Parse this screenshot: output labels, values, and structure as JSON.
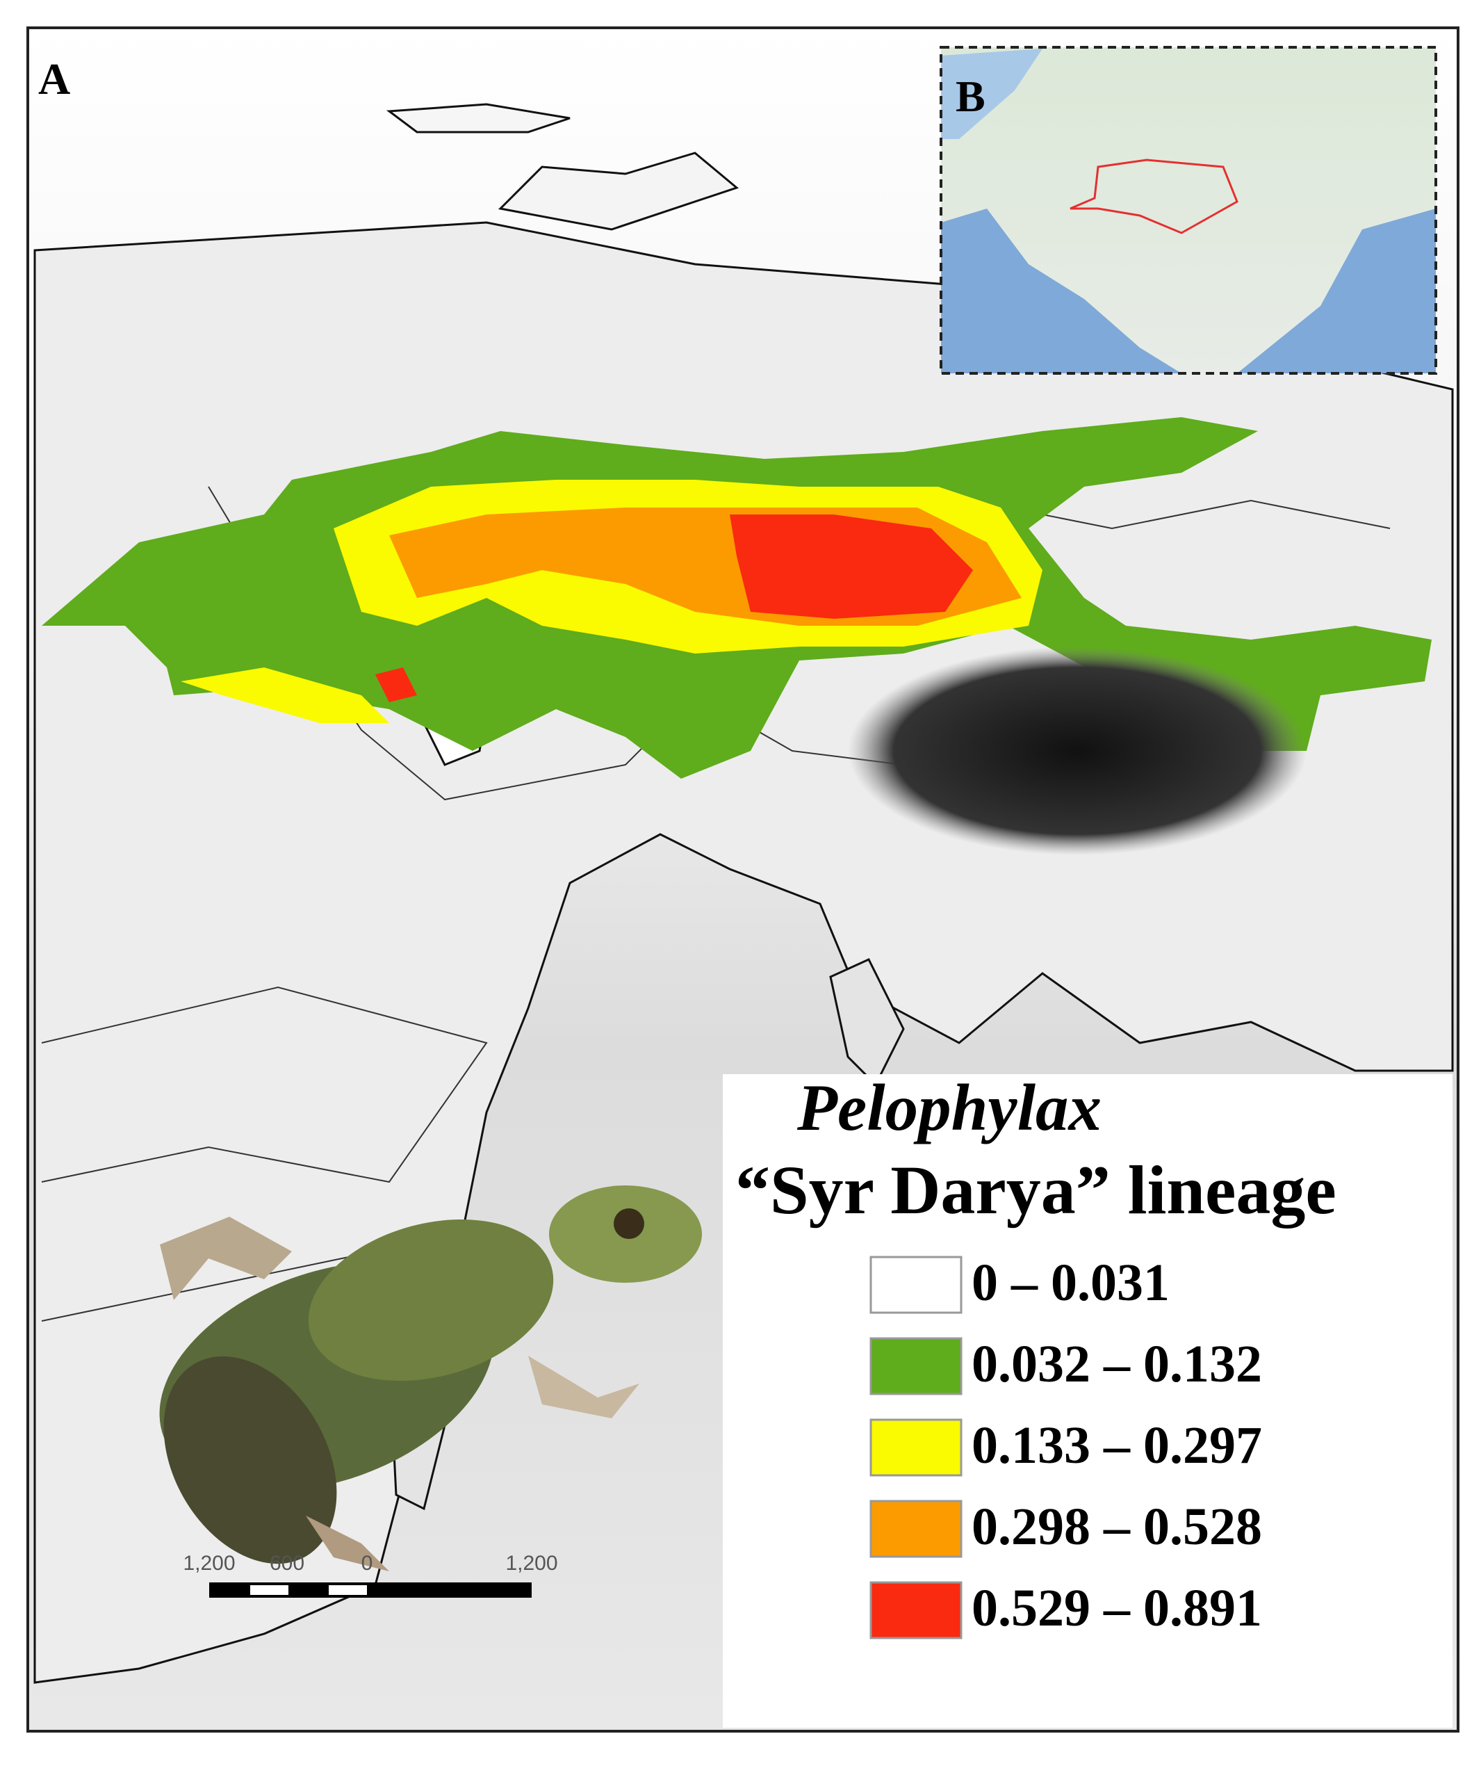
{
  "panels": {
    "a": "A",
    "b": "B"
  },
  "legend": {
    "title": "Pelophylax",
    "subtitle": "“Syr Darya” lineage",
    "items": [
      {
        "label": "0 – 0.031",
        "color": "#ffffff"
      },
      {
        "label": "0.032 – 0.132",
        "color": "#5fac1c"
      },
      {
        "label": "0.133 – 0.297",
        "color": "#fafa00"
      },
      {
        "label": "0.298 – 0.528",
        "color": "#fb9b00"
      },
      {
        "label": "0.529 – 0.891",
        "color": "#f92a10"
      }
    ]
  },
  "scale_bar": {
    "labels": [
      "1,200",
      "600",
      "0",
      "1,200"
    ]
  }
}
